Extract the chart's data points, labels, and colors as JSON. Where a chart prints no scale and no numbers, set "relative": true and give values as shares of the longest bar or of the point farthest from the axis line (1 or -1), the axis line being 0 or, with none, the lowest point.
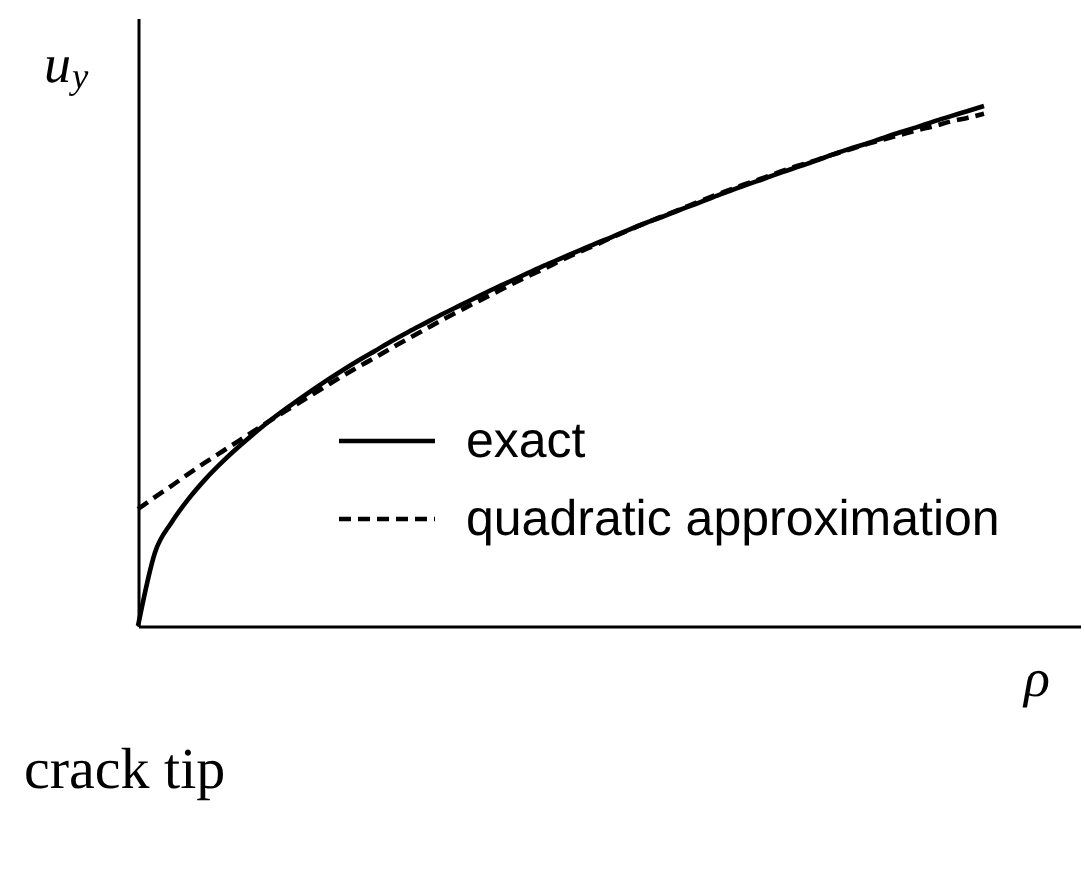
{
  "chart_data": {
    "type": "line",
    "relative": true,
    "xlabel": "ρ",
    "ylabel": "u$_{y}$",
    "legend": "bottom right",
    "annotations": [
      "crack tip"
    ],
    "categories": [
      null,
      null,
      null,
      null,
      null,
      null,
      null,
      null,
      null,
      null,
      null,
      null,
      null,
      null,
      null,
      null,
      null,
      null,
      null,
      null,
      null,
      null,
      null,
      null,
      null,
      null,
      null,
      null,
      null,
      null,
      null,
      null,
      null,
      null,
      null,
      null,
      null,
      null,
      null,
      null,
      null,
      null,
      null,
      null,
      null,
      null,
      null,
      null,
      null,
      null,
      null
    ],
    "series": [
      {
        "name": "exact",
        "color": "#000000",
        "line_style": "solid",
        "values": [
          0,
          0.141,
          0.2,
          0.245,
          0.283,
          0.316,
          0.346,
          0.374,
          0.4,
          0.424,
          0.447,
          0.469,
          0.49,
          0.51,
          0.529,
          0.548,
          0.566,
          0.583,
          0.6,
          0.616,
          0.632,
          0.648,
          0.663,
          0.678,
          0.693,
          0.707,
          0.721,
          0.735,
          0.748,
          0.762,
          0.775,
          0.787,
          0.8,
          0.812,
          0.825,
          0.837,
          0.849,
          0.86,
          0.872,
          0.883,
          0.894,
          0.906,
          0.917,
          0.927,
          0.938,
          0.949,
          0.959,
          0.97,
          0.98,
          0.99,
          1
        ]
      },
      {
        "name": "quadratic approximation",
        "color": "#000000",
        "line_style": "dashed",
        "values": [
          0.225,
          0.248,
          0.27,
          0.293,
          0.315,
          0.336,
          0.357,
          0.378,
          0.399,
          0.419,
          0.439,
          0.459,
          0.479,
          0.498,
          0.516,
          0.535,
          0.553,
          0.571,
          0.589,
          0.606,
          0.623,
          0.639,
          0.656,
          0.672,
          0.687,
          0.703,
          0.718,
          0.732,
          0.747,
          0.761,
          0.775,
          0.788,
          0.801,
          0.814,
          0.827,
          0.839,
          0.851,
          0.862,
          0.874,
          0.885,
          0.895,
          0.906,
          0.916,
          0.926,
          0.935,
          0.944,
          0.953,
          0.961,
          0.97,
          0.977,
          0.985
        ]
      }
    ]
  }
}
